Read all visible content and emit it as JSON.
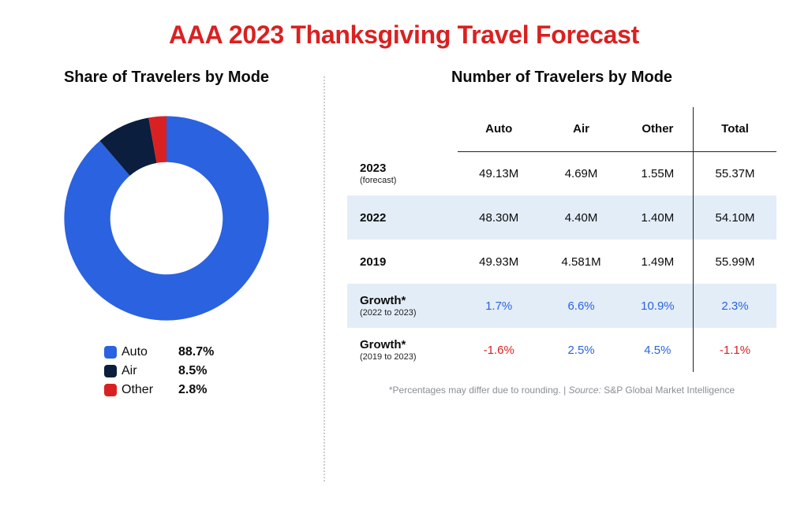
{
  "title": "AAA 2023 Thanksgiving Travel Forecast",
  "left": {
    "title": "Share of Travelers by Mode",
    "donut": {
      "type": "pie",
      "inner_radius_pct": 0.55,
      "start_angle_deg": -90,
      "background_color": "#ffffff",
      "slices": [
        {
          "label": "Auto",
          "value": 88.7,
          "color": "#2a62e0",
          "pct_text": "88.7%"
        },
        {
          "label": "Air",
          "value": 8.5,
          "color": "#0b1e3d",
          "pct_text": "8.5%"
        },
        {
          "label": "Other",
          "value": 2.8,
          "color": "#d92121",
          "pct_text": "2.8%"
        }
      ]
    }
  },
  "right": {
    "title": "Number of Travelers by Mode",
    "table": {
      "columns": [
        "Auto",
        "Air",
        "Other",
        "Total"
      ],
      "rows": [
        {
          "label": "2023",
          "sublabel": "(forecast)",
          "shaded": false,
          "cells": [
            "49.13M",
            "4.69M",
            "1.55M",
            "55.37M"
          ],
          "cell_colors": [
            null,
            null,
            null,
            null
          ]
        },
        {
          "label": "2022",
          "sublabel": "",
          "shaded": true,
          "cells": [
            "48.30M",
            "4.40M",
            "1.40M",
            "54.10M"
          ],
          "cell_colors": [
            null,
            null,
            null,
            null
          ]
        },
        {
          "label": "2019",
          "sublabel": "",
          "shaded": false,
          "cells": [
            "49.93M",
            "4.581M",
            "1.49M",
            "55.99M"
          ],
          "cell_colors": [
            null,
            null,
            null,
            null
          ]
        },
        {
          "label": "Growth*",
          "sublabel": "(2022 to 2023)",
          "shaded": true,
          "cells": [
            "1.7%",
            "6.6%",
            "10.9%",
            "2.3%"
          ],
          "cell_colors": [
            "#2a62e0",
            "#2a62e0",
            "#2a62e0",
            "#2a62e0"
          ]
        },
        {
          "label": "Growth*",
          "sublabel": "(2019 to 2023)",
          "shaded": false,
          "cells": [
            "-1.6%",
            "2.5%",
            "4.5%",
            "-1.1%"
          ],
          "cell_colors": [
            "#d92121",
            "#2a62e0",
            "#2a62e0",
            "#d92121"
          ]
        }
      ],
      "header_border_color": "#222222",
      "total_separator_color": "#222222",
      "shade_color": "#e3edf8"
    },
    "footnote_prefix": "*Percentages may differ due to rounding. | ",
    "footnote_source_label": "Source:",
    "footnote_source": " S&P Global Market Intelligence"
  }
}
